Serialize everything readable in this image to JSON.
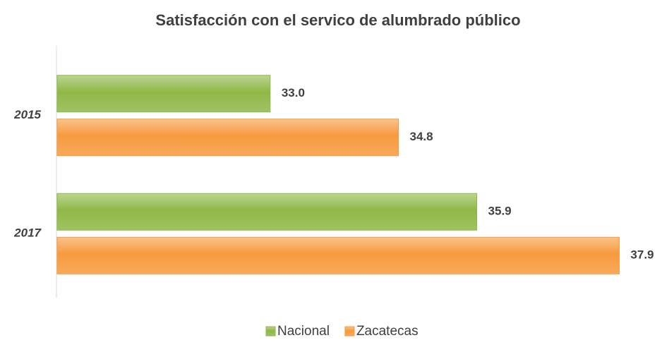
{
  "chart_data": {
    "type": "hbar",
    "title": "Satisfacción con el servico de alumbrado público",
    "categories": [
      "2015",
      "2017"
    ],
    "series": [
      {
        "name": "Nacional",
        "color": "#8fb847",
        "values": [
          33.0,
          35.9
        ],
        "value_labels": [
          "33.0",
          "35.9"
        ]
      },
      {
        "name": "Zacatecas",
        "color": "#f79a3e",
        "values": [
          34.8,
          37.9
        ],
        "value_labels": [
          "34.8",
          "37.9"
        ]
      }
    ],
    "xlim": [
      30,
      38.5
    ],
    "legend": "bottom"
  }
}
